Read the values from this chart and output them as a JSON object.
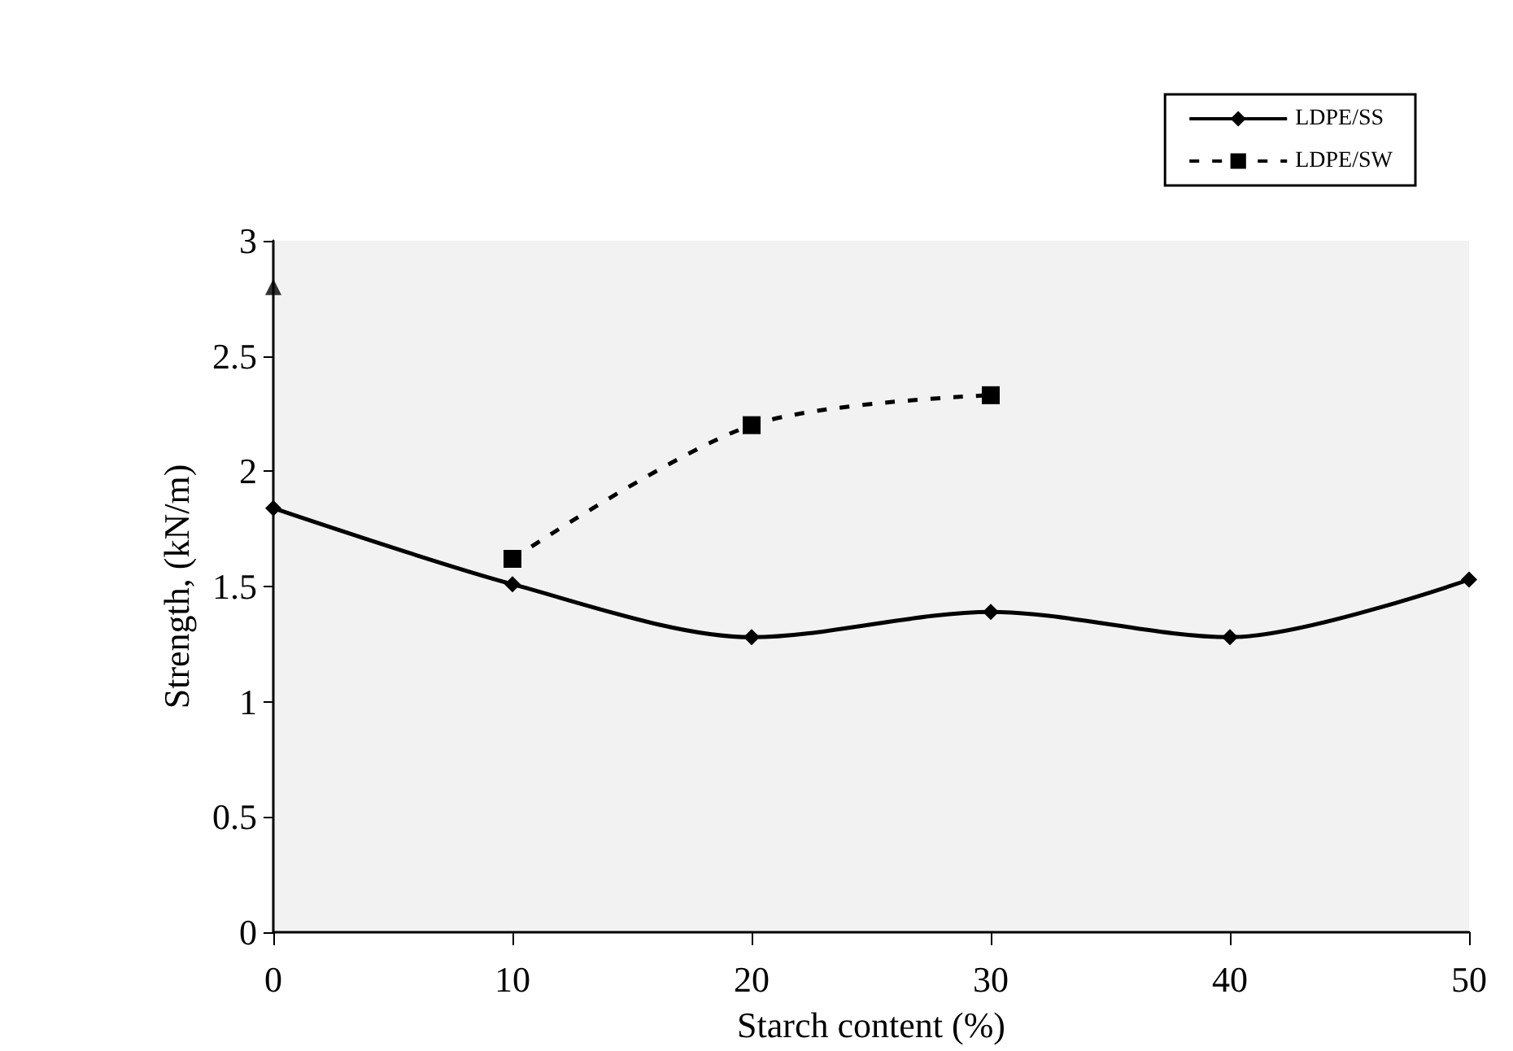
{
  "chart_data": {
    "type": "line",
    "xlabel": "Starch content (%)",
    "ylabel": "Strength, (kN/m)",
    "x": [
      0,
      10,
      20,
      30,
      40,
      50
    ],
    "xlim": [
      0,
      50
    ],
    "xticks": [
      0,
      10,
      20,
      30,
      40,
      50
    ],
    "ylim": [
      0,
      3
    ],
    "yticks": [
      0,
      0.5,
      1,
      1.5,
      2,
      2.5,
      3
    ],
    "grid": false,
    "legend": "top right",
    "series": [
      {
        "name": "LDPE/SS",
        "color": "#000000",
        "marker": "diamond",
        "line_style": "solid",
        "values": [
          1.84,
          1.51,
          1.28,
          1.39,
          1.28,
          1.53
        ]
      },
      {
        "name": "LDPE/SW",
        "color": "#000000",
        "marker": "square",
        "line_style": "dashed",
        "x": [
          10,
          20,
          30
        ],
        "values": [
          1.62,
          2.2,
          2.33
        ]
      },
      {
        "type": "scatter",
        "color": "#000000",
        "marker": "triangle",
        "x": [
          0
        ],
        "values": [
          2.8
        ]
      }
    ]
  }
}
